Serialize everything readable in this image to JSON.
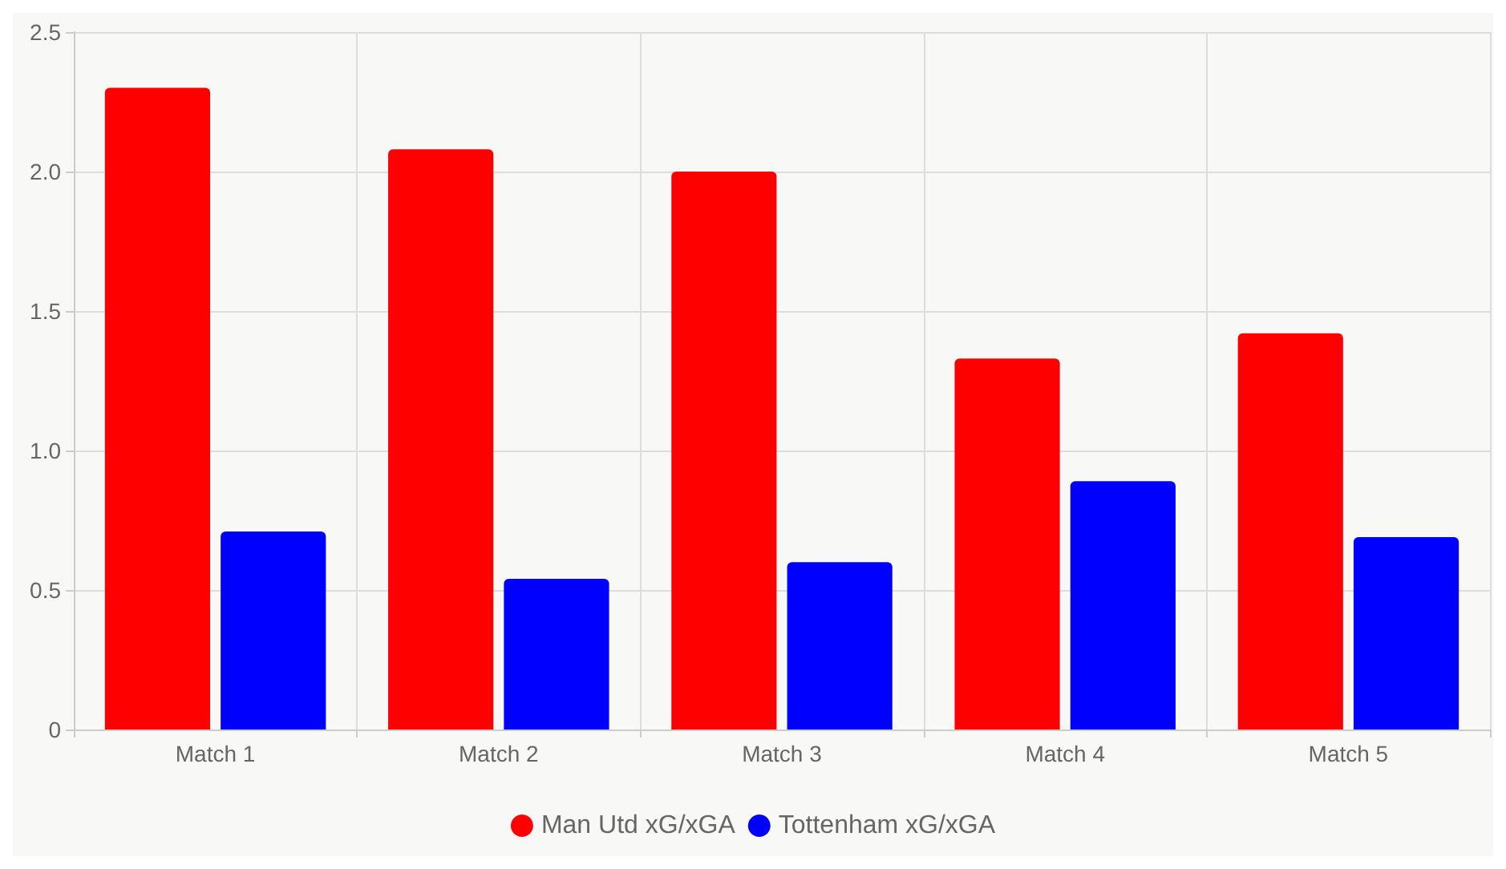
{
  "chart_data": {
    "type": "bar",
    "categories": [
      "Match 1",
      "Match 2",
      "Match 3",
      "Match 4",
      "Match 5"
    ],
    "series": [
      {
        "name": "Man Utd xG/xGA",
        "color": "#ff0000",
        "values": [
          2.3,
          2.08,
          2.0,
          1.33,
          1.42
        ]
      },
      {
        "name": "Tottenham xG/xGA",
        "color": "#0000ff",
        "values": [
          0.71,
          0.54,
          0.6,
          0.89,
          0.69
        ]
      }
    ],
    "ylim": [
      0,
      2.5
    ],
    "yticks": [
      0,
      0.5,
      {
        "value": 1,
        "label": "1.0"
      },
      1.5,
      {
        "value": 2,
        "label": "2.0"
      },
      2.5
    ],
    "grid": true,
    "legend": "bottom"
  }
}
